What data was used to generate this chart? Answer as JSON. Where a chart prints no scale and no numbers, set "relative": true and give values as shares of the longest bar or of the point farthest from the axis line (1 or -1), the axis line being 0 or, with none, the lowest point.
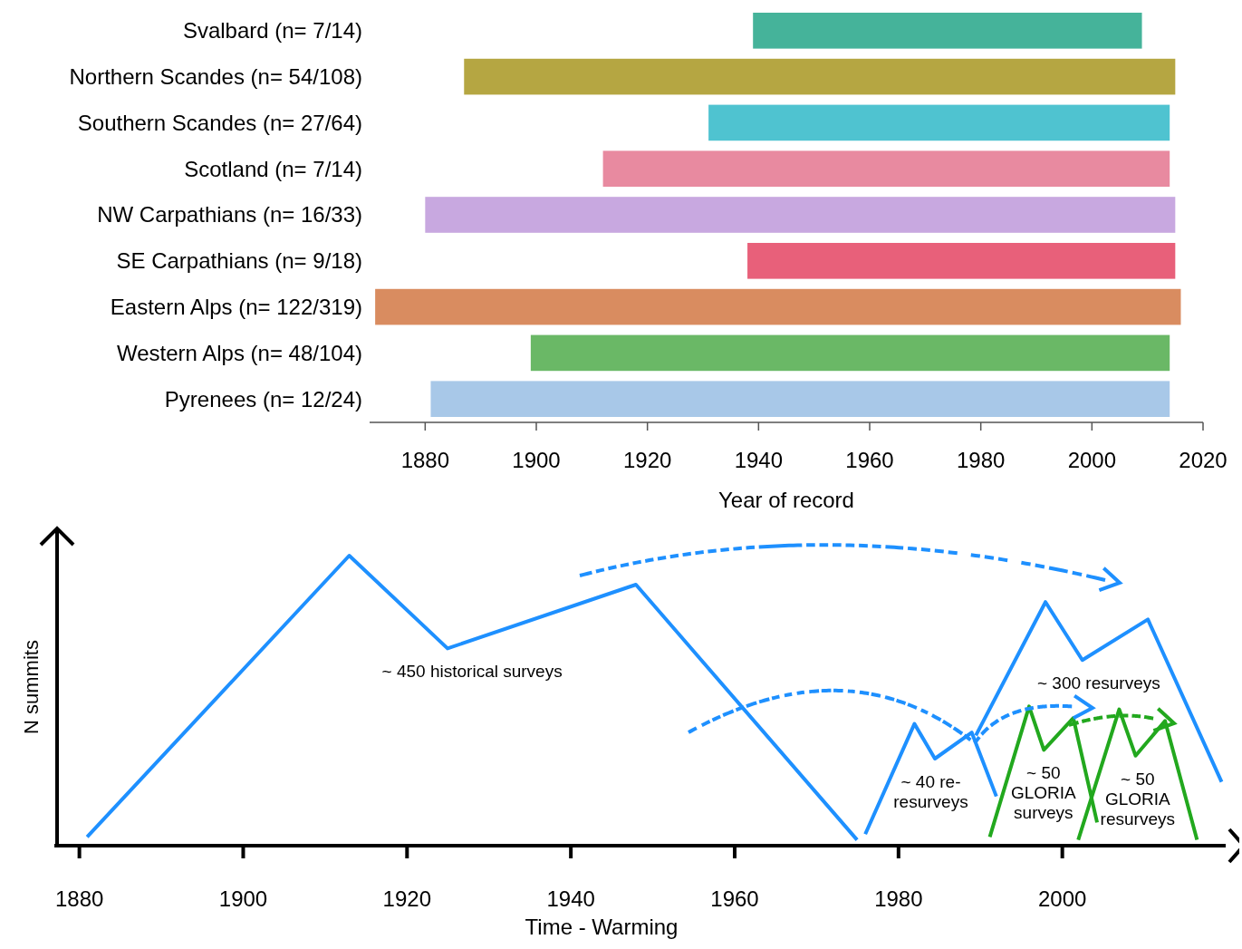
{
  "chart_data": [
    {
      "type": "bar",
      "orientation": "horizontal",
      "xlabel": "Year of record",
      "categories": [
        "Svalbard (n= 7/14)",
        "Northern Scandes (n= 54/108)",
        "Southern Scandes (n= 27/64)",
        "Scotland (n= 7/14)",
        "NW Carpathians (n= 16/33)",
        "SE Carpathians (n= 9/18)",
        "Eastern Alps (n= 122/319)",
        "Western Alps (n= 48/104)",
        "Pyrenees (n= 12/24)"
      ],
      "base": [
        1939,
        1887,
        1931,
        1912,
        1880,
        1938,
        1871,
        1899,
        1881
      ],
      "values": [
        70,
        128,
        83,
        102,
        135,
        77,
        145,
        115,
        133
      ],
      "colors": [
        "#45b39a",
        "#b5a642",
        "#4fc3d0",
        "#e88aa0",
        "#c8a8e0",
        "#e8607a",
        "#d98c60",
        "#6ab866",
        "#a8c8e8"
      ],
      "xlim": [
        1870,
        2020
      ],
      "xticks": [
        1880,
        1900,
        1920,
        1940,
        1960,
        1980,
        2000,
        2020
      ],
      "grid": false
    },
    {
      "type": "line",
      "relative": true,
      "xlabel": "Time - Warming",
      "ylabel": "N summits",
      "tick_labels": "x",
      "marker": "none",
      "line_style": "solid",
      "xlim": [
        1877,
        2020
      ],
      "xticks": [
        1880,
        1900,
        1920,
        1940,
        1960,
        1980,
        2000
      ],
      "series": [
        {
          "name": "~ 450 historical surveys",
          "color": "#1e90ff",
          "x": [
            1881,
            1913,
            1925,
            1948,
            1975
          ],
          "values": [
            0.03,
            1,
            0.68,
            0.9,
            0.02
          ]
        },
        {
          "name": "~ 40 re-resurveys",
          "color": "#1e90ff",
          "x": [
            1976,
            1982,
            1984.5,
            1989,
            1992
          ],
          "values": [
            0.04,
            0.42,
            0.3,
            0.39,
            0.17
          ]
        },
        {
          "name": "~ 300 resurveys",
          "color": "#1e90ff",
          "x": [
            1989.5,
            1998,
            2002.5,
            2010.5,
            2019.5
          ],
          "values": [
            0.38,
            0.84,
            0.64,
            0.78,
            0.22
          ]
        },
        {
          "name": "~ 50 GLORIA surveys",
          "color": "#22a81e",
          "x": [
            1991.2,
            1996,
            1997.8,
            2001.4,
            2004.3
          ],
          "values": [
            0.03,
            0.48,
            0.33,
            0.44,
            0.08
          ]
        },
        {
          "name": "~ 50 GLORIA resurveys",
          "color": "#22a81e",
          "x": [
            2002,
            2007,
            2009,
            2012.6,
            2016.5
          ],
          "values": [
            0.02,
            0.47,
            0.31,
            0.43,
            0.02
          ]
        }
      ]
    }
  ]
}
